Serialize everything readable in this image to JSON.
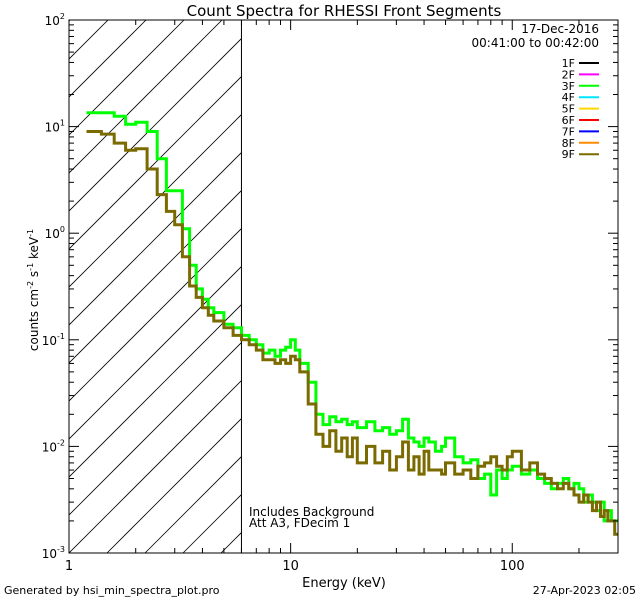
{
  "chart_data": {
    "type": "line",
    "title": "Count Spectra for RHESSI Front Segments",
    "xlabel": "Energy (keV)",
    "ylabel": "counts cm",
    "ylabel_parts": [
      "counts cm",
      "-2",
      " s",
      "-1",
      " keV",
      "-1"
    ],
    "x_scale": "log",
    "y_scale": "log",
    "xlim": [
      1,
      300
    ],
    "ylim": [
      0.001,
      100
    ],
    "x_ticks": [
      {
        "value": 1,
        "label": "1"
      },
      {
        "value": 10,
        "label": "10"
      },
      {
        "value": 100,
        "label": "100"
      }
    ],
    "y_ticks": [
      {
        "value": 0.001,
        "base": "10",
        "exp": "-3"
      },
      {
        "value": 0.01,
        "base": "10",
        "exp": "-2"
      },
      {
        "value": 0.1,
        "base": "10",
        "exp": "-1"
      },
      {
        "value": 1,
        "base": "10",
        "exp": "0"
      },
      {
        "value": 10,
        "base": "10",
        "exp": "1"
      },
      {
        "value": 100,
        "base": "10",
        "exp": "2"
      }
    ],
    "attenuated_region": {
      "x_start": 1,
      "x_end": 6
    },
    "date": "17-Dec-2016",
    "time_range": "00:41:00 to 00:42:00",
    "annotations": [
      "Includes Background",
      "Att A3, FDecim 1"
    ],
    "legend": [
      {
        "name": "1F",
        "color": "#000000"
      },
      {
        "name": "2F",
        "color": "#ff00ff"
      },
      {
        "name": "3F",
        "color": "#00ff00"
      },
      {
        "name": "4F",
        "color": "#00e5ff"
      },
      {
        "name": "5F",
        "color": "#ffd700"
      },
      {
        "name": "6F",
        "color": "#ff0000"
      },
      {
        "name": "7F",
        "color": "#0000ff"
      },
      {
        "name": "8F",
        "color": "#ff8c00"
      },
      {
        "name": "9F",
        "color": "#7a6a00"
      }
    ],
    "series": [
      {
        "name": "3F",
        "color": "#00ff00",
        "points": [
          [
            1.2,
            13.5
          ],
          [
            1.4,
            13.5
          ],
          [
            1.6,
            12.5
          ],
          [
            1.8,
            10.5
          ],
          [
            2,
            11
          ],
          [
            2.25,
            9
          ],
          [
            2.5,
            5
          ],
          [
            2.75,
            2.5
          ],
          [
            3,
            2.5
          ],
          [
            3.25,
            1.1
          ],
          [
            3.5,
            0.5
          ],
          [
            3.75,
            0.3
          ],
          [
            4,
            0.24
          ],
          [
            4.25,
            0.2
          ],
          [
            4.5,
            0.18
          ],
          [
            5,
            0.14
          ],
          [
            5.5,
            0.13
          ],
          [
            6,
            0.11
          ],
          [
            6.5,
            0.1
          ],
          [
            7,
            0.09
          ],
          [
            7.5,
            0.075
          ],
          [
            8,
            0.08
          ],
          [
            8.5,
            0.07
          ],
          [
            9,
            0.08
          ],
          [
            9.5,
            0.085
          ],
          [
            10,
            0.1
          ],
          [
            10.5,
            0.08
          ],
          [
            11,
            0.06
          ],
          [
            12,
            0.04
          ],
          [
            13,
            0.02
          ],
          [
            14,
            0.016
          ],
          [
            15,
            0.019
          ],
          [
            16,
            0.017
          ],
          [
            17,
            0.018
          ],
          [
            18,
            0.016
          ],
          [
            19,
            0.017
          ],
          [
            20,
            0.015
          ],
          [
            22,
            0.017
          ],
          [
            24,
            0.014
          ],
          [
            26,
            0.015
          ],
          [
            28,
            0.013
          ],
          [
            30,
            0.014
          ],
          [
            32,
            0.018
          ],
          [
            34,
            0.012
          ],
          [
            36,
            0.011
          ],
          [
            38,
            0.01
          ],
          [
            40,
            0.012
          ],
          [
            42,
            0.011
          ],
          [
            45,
            0.009
          ],
          [
            48,
            0.01
          ],
          [
            50,
            0.012
          ],
          [
            55,
            0.008
          ],
          [
            60,
            0.007
          ],
          [
            65,
            0.0075
          ],
          [
            70,
            0.005
          ],
          [
            75,
            0.0055
          ],
          [
            80,
            0.0035
          ],
          [
            85,
            0.006
          ],
          [
            90,
            0.005
          ],
          [
            95,
            0.006
          ],
          [
            100,
            0.0065
          ],
          [
            110,
            0.0055
          ],
          [
            120,
            0.006
          ],
          [
            130,
            0.005
          ],
          [
            140,
            0.0045
          ],
          [
            150,
            0.004
          ],
          [
            160,
            0.0045
          ],
          [
            170,
            0.005
          ],
          [
            180,
            0.004
          ],
          [
            190,
            0.0045
          ],
          [
            200,
            0.004
          ],
          [
            210,
            0.003
          ],
          [
            220,
            0.0035
          ],
          [
            230,
            0.003
          ],
          [
            240,
            0.0025
          ],
          [
            250,
            0.003
          ],
          [
            260,
            0.002
          ],
          [
            270,
            0.0025
          ],
          [
            280,
            0.002
          ],
          [
            290,
            0.002
          ]
        ]
      },
      {
        "name": "9F",
        "color": "#7a6a00",
        "points": [
          [
            1.2,
            9
          ],
          [
            1.4,
            8.5
          ],
          [
            1.6,
            7
          ],
          [
            1.8,
            6
          ],
          [
            2,
            6.2
          ],
          [
            2.25,
            4
          ],
          [
            2.5,
            2.3
          ],
          [
            2.75,
            1.6
          ],
          [
            3,
            1.2
          ],
          [
            3.25,
            0.6
          ],
          [
            3.5,
            0.32
          ],
          [
            3.75,
            0.25
          ],
          [
            4,
            0.2
          ],
          [
            4.25,
            0.17
          ],
          [
            4.5,
            0.15
          ],
          [
            5,
            0.13
          ],
          [
            5.5,
            0.11
          ],
          [
            6,
            0.1
          ],
          [
            6.5,
            0.09
          ],
          [
            7,
            0.08
          ],
          [
            7.5,
            0.065
          ],
          [
            8,
            0.065
          ],
          [
            8.5,
            0.06
          ],
          [
            9,
            0.065
          ],
          [
            9.5,
            0.06
          ],
          [
            10,
            0.07
          ],
          [
            10.5,
            0.065
          ],
          [
            11,
            0.05
          ],
          [
            12,
            0.025
          ],
          [
            13,
            0.013
          ],
          [
            14,
            0.01
          ],
          [
            15,
            0.014
          ],
          [
            16,
            0.009
          ],
          [
            17,
            0.012
          ],
          [
            18,
            0.008
          ],
          [
            19,
            0.012
          ],
          [
            20,
            0.007
          ],
          [
            22,
            0.01
          ],
          [
            24,
            0.007
          ],
          [
            26,
            0.009
          ],
          [
            28,
            0.006
          ],
          [
            30,
            0.008
          ],
          [
            32,
            0.011
          ],
          [
            34,
            0.006
          ],
          [
            36,
            0.008
          ],
          [
            38,
            0.0055
          ],
          [
            40,
            0.009
          ],
          [
            42,
            0.006
          ],
          [
            45,
            0.006
          ],
          [
            48,
            0.0055
          ],
          [
            50,
            0.007
          ],
          [
            55,
            0.0055
          ],
          [
            60,
            0.006
          ],
          [
            65,
            0.005
          ],
          [
            70,
            0.0065
          ],
          [
            75,
            0.007
          ],
          [
            80,
            0.008
          ],
          [
            85,
            0.0065
          ],
          [
            90,
            0.006
          ],
          [
            95,
            0.008
          ],
          [
            100,
            0.009
          ],
          [
            110,
            0.006
          ],
          [
            120,
            0.007
          ],
          [
            130,
            0.0055
          ],
          [
            140,
            0.005
          ],
          [
            150,
            0.0045
          ],
          [
            160,
            0.004
          ],
          [
            170,
            0.0045
          ],
          [
            180,
            0.004
          ],
          [
            190,
            0.0035
          ],
          [
            200,
            0.003
          ],
          [
            210,
            0.0035
          ],
          [
            220,
            0.003
          ],
          [
            230,
            0.0025
          ],
          [
            240,
            0.003
          ],
          [
            250,
            0.0022
          ],
          [
            260,
            0.0025
          ],
          [
            270,
            0.002
          ],
          [
            280,
            0.002
          ],
          [
            290,
            0.0015
          ]
        ]
      }
    ]
  },
  "footer": {
    "generated_by": "Generated by hsi_min_spectra_plot.pro",
    "timestamp": "27-Apr-2023 02:05"
  }
}
